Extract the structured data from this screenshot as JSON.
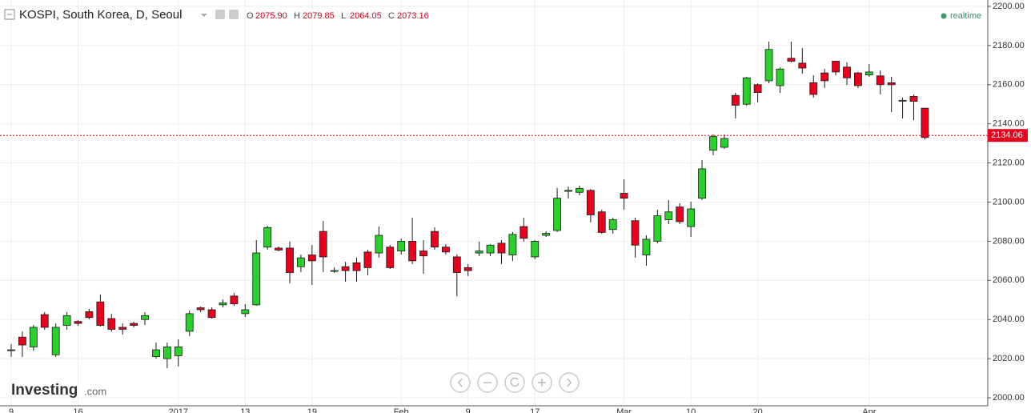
{
  "header": {
    "title": "KOSPI, South Korea, D, Seoul",
    "ohlc": [
      {
        "label": "O",
        "value": "2075.90"
      },
      {
        "label": "H",
        "value": "2079.85"
      },
      {
        "label": "L",
        "value": "2064.05"
      },
      {
        "label": "C",
        "value": "2073.16"
      }
    ],
    "status": "realtime",
    "logo": "Investing",
    "logo_suffix": ".com"
  },
  "chart_data": {
    "type": "candlestick",
    "up_color": "#2ad12a",
    "down_color": "#e8001c",
    "outline_color": "#1a1a1a",
    "grid": true,
    "categories": [
      "9",
      null,
      null,
      null,
      null,
      null,
      "16",
      null,
      null,
      null,
      null,
      null,
      null,
      null,
      null,
      "2017",
      null,
      null,
      null,
      null,
      null,
      "13",
      null,
      null,
      null,
      null,
      null,
      "19",
      null,
      null,
      null,
      null,
      null,
      null,
      null,
      "Feb",
      null,
      null,
      null,
      null,
      null,
      "9",
      null,
      null,
      null,
      null,
      null,
      "17",
      null,
      null,
      null,
      null,
      null,
      null,
      null,
      "Mar",
      null,
      null,
      null,
      null,
      null,
      "10",
      null,
      null,
      null,
      null,
      null,
      "20",
      null,
      null,
      null,
      null,
      null,
      null,
      null,
      null,
      null,
      "Apr",
      null,
      null,
      null,
      null,
      null
    ],
    "open": [
      2024.5,
      2031,
      2026,
      2042.5,
      2022,
      2037,
      2039,
      2044,
      2049,
      2040.5,
      2036,
      2038,
      2040,
      2021,
      2020,
      2021.5,
      2034,
      2046,
      2045,
      2047.5,
      2052,
      2043,
      2047.5,
      2077,
      2076.5,
      2076.5,
      2067,
      2073,
      2085,
      2065,
      2067,
      2069,
      2074.5,
      2074,
      2077,
      2075,
      2080,
      2075,
      2085,
      2077,
      2072,
      2066.5,
      2074,
      2074,
      2079,
      2073,
      2087.5,
      2072,
      2083,
      2085.5,
      2105.5,
      2105,
      2106,
      2095,
      2086,
      2104.5,
      2090.5,
      2073,
      2080,
      2091,
      2097.5,
      2087.5,
      2102,
      2126.5,
      2128,
      2154.5,
      2150,
      2160,
      2162,
      2159.5,
      2173.5,
      2171,
      2161,
      2166,
      2172,
      2169,
      2166,
      2165,
      2164.5,
      2161,
      2152,
      2154,
      2148
    ],
    "high": [
      2027.4,
      2033.9,
      2037.2,
      2043.8,
      2038,
      2043.8,
      2039.7,
      2045.4,
      2052.8,
      2042.9,
      2038,
      2038.9,
      2043.8,
      2028.2,
      2028.2,
      2029.9,
      2044.6,
      2046.6,
      2046.2,
      2050.3,
      2053.6,
      2047.9,
      2080.6,
      2087.9,
      2077.3,
      2079.8,
      2073.2,
      2078.1,
      2090.4,
      2066.7,
      2069.5,
      2071.6,
      2075.7,
      2087.5,
      2078.1,
      2081.4,
      2092,
      2080.6,
      2087.1,
      2078.5,
      2073.2,
      2068.3,
      2079.8,
      2078.5,
      2080.6,
      2084.7,
      2092,
      2080.6,
      2085.1,
      2107.2,
      2108,
      2108.4,
      2106.7,
      2096.1,
      2092,
      2111.7,
      2092,
      2083,
      2096.1,
      2101,
      2099.4,
      2100.2,
      2121.5,
      2134.6,
      2134.6,
      2155.8,
      2164,
      2160.7,
      2182,
      2168.9,
      2182,
      2178.7,
      2164.8,
      2168.1,
      2172.2,
      2171.4,
      2166.5,
      2170.6,
      2167.3,
      2164,
      2153.4,
      2155,
      2148.1
    ],
    "low": [
      2020.9,
      2020.9,
      2024.1,
      2034.8,
      2020.9,
      2034.8,
      2036.8,
      2040.1,
      2036.4,
      2033.9,
      2032.3,
      2036,
      2037.2,
      2020,
      2015.1,
      2016,
      2031.5,
      2043.8,
      2040.5,
      2046.2,
      2047,
      2041.3,
      2047,
      2075.7,
      2074.8,
      2058.5,
      2064.2,
      2057.7,
      2064.2,
      2063.8,
      2059.3,
      2059.3,
      2062.6,
      2071.6,
      2065.8,
      2073.2,
      2068.3,
      2063.4,
      2075.7,
      2073.2,
      2051.9,
      2062.2,
      2072.4,
      2072.4,
      2068.3,
      2069.9,
      2079.8,
      2070.8,
      2082.2,
      2084.7,
      2101.8,
      2103.5,
      2089.6,
      2083.8,
      2083.8,
      2096.1,
      2071.6,
      2067.5,
      2078.9,
      2088.8,
      2088.8,
      2082.2,
      2101,
      2123.9,
      2127.2,
      2142.7,
      2149.3,
      2150.9,
      2160.7,
      2155.8,
      2171.4,
      2165.6,
      2153.4,
      2158.3,
      2164.8,
      2159.9,
      2158.3,
      2164,
      2155,
      2146,
      2142.7,
      2141.9,
      2132.1
    ],
    "close": [
      2024.5,
      2027,
      2036,
      2036,
      2036,
      2042,
      2038,
      2041,
      2037,
      2035,
      2035,
      2037,
      2042,
      2024.5,
      2026,
      2026,
      2043,
      2045,
      2041,
      2048.5,
      2048,
      2045,
      2074,
      2087,
      2075.5,
      2064,
      2071.5,
      2070,
      2072,
      2065,
      2065,
      2065,
      2066.5,
      2083,
      2066.5,
      2080,
      2070,
      2072.5,
      2077,
      2074.5,
      2064,
      2065,
      2075,
      2078,
      2074,
      2083.5,
      2081.5,
      2080,
      2084,
      2102,
      2106,
      2107,
      2093.5,
      2084.5,
      2091,
      2102,
      2078,
      2081,
      2093,
      2095,
      2090,
      2096.5,
      2117,
      2133.5,
      2132.5,
      2149.5,
      2163.5,
      2156,
      2178,
      2168,
      2172,
      2168.5,
      2155,
      2162,
      2166.5,
      2163.5,
      2159.5,
      2166.5,
      2160,
      2160,
      2152,
      2151.5,
      2133
    ],
    "last_price": 2134.06,
    "last_price_color": "#e8001c",
    "ylim": [
      2000,
      2200
    ],
    "yticks": [
      {
        "value": 2000,
        "label": "2000.00"
      },
      {
        "value": 2020,
        "label": "2020.00"
      },
      {
        "value": 2040,
        "label": "2040.00"
      },
      {
        "value": 2060,
        "label": "2060.00"
      },
      {
        "value": 2080,
        "label": "2080.00"
      },
      {
        "value": 2100,
        "label": "2100.00"
      },
      {
        "value": 2120,
        "label": "2120.00"
      },
      {
        "value": 2140,
        "label": "2140.00"
      },
      {
        "value": 2160,
        "label": "2160.00"
      },
      {
        "value": 2180,
        "label": "2180.00"
      },
      {
        "value": 2200,
        "label": "2200.00"
      }
    ]
  }
}
